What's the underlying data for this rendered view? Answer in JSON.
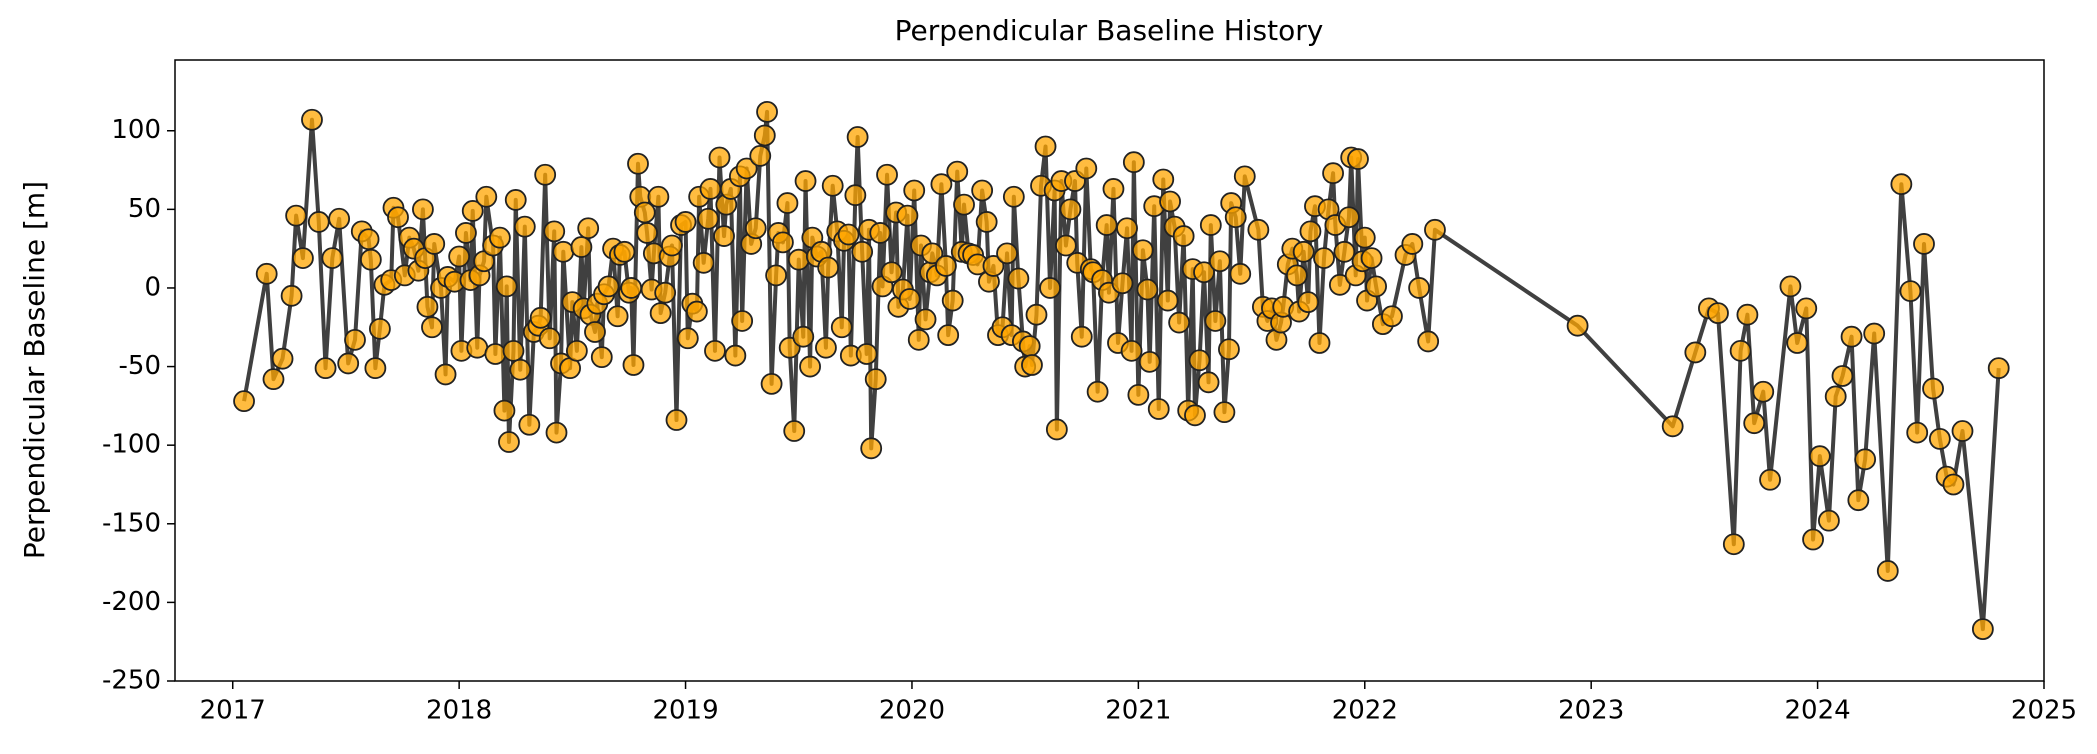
{
  "chart_data": {
    "type": "line",
    "title": "Perpendicular Baseline History",
    "ylabel": "Perpendicular Baseline [m]",
    "color": "#ffa500",
    "line_color": "#404040",
    "xlim": [
      2016.745,
      2025
    ],
    "xticks": [
      2017,
      2018,
      2019,
      2020,
      2021,
      2022,
      2023,
      2024,
      2025
    ],
    "ylim": [
      -250,
      145
    ],
    "yticks": [
      -250,
      -200,
      -150,
      -100,
      -50,
      0,
      50,
      100
    ],
    "x": [
      2017.05,
      2017.15,
      2017.18,
      2017.22,
      2017.26,
      2017.28,
      2017.31,
      2017.35,
      2017.38,
      2017.41,
      2017.44,
      2017.47,
      2017.51,
      2017.54,
      2017.57,
      2017.6,
      2017.61,
      2017.63,
      2017.65,
      2017.67,
      2017.7,
      2017.71,
      2017.73,
      2017.76,
      2017.78,
      2017.8,
      2017.82,
      2017.84,
      2017.85,
      2017.86,
      2017.88,
      2017.89,
      2017.92,
      2017.94,
      2017.95,
      2017.98,
      2018.0,
      2018.01,
      2018.03,
      2018.05,
      2018.06,
      2018.08,
      2018.09,
      2018.11,
      2018.12,
      2018.15,
      2018.16,
      2018.18,
      2018.2,
      2018.21,
      2018.22,
      2018.24,
      2018.25,
      2018.27,
      2018.29,
      2018.31,
      2018.33,
      2018.35,
      2018.36,
      2018.38,
      2018.4,
      2018.42,
      2018.43,
      2018.45,
      2018.46,
      2018.49,
      2018.5,
      2018.52,
      2018.54,
      2018.55,
      2018.57,
      2018.58,
      2018.6,
      2018.61,
      2018.63,
      2018.64,
      2018.66,
      2018.68,
      2018.7,
      2018.71,
      2018.73,
      2018.75,
      2018.76,
      2018.77,
      2018.79,
      2018.8,
      2018.82,
      2018.83,
      2018.85,
      2018.86,
      2018.88,
      2018.89,
      2018.91,
      2018.93,
      2018.94,
      2018.96,
      2018.98,
      2019.0,
      2019.01,
      2019.03,
      2019.05,
      2019.06,
      2019.08,
      2019.1,
      2019.11,
      2019.13,
      2019.15,
      2019.17,
      2019.18,
      2019.2,
      2019.22,
      2019.24,
      2019.25,
      2019.27,
      2019.29,
      2019.31,
      2019.33,
      2019.35,
      2019.36,
      2019.38,
      2019.4,
      2019.41,
      2019.43,
      2019.45,
      2019.46,
      2019.48,
      2019.5,
      2019.52,
      2019.53,
      2019.55,
      2019.56,
      2019.58,
      2019.6,
      2019.62,
      2019.63,
      2019.65,
      2019.67,
      2019.69,
      2019.7,
      2019.72,
      2019.73,
      2019.75,
      2019.76,
      2019.78,
      2019.8,
      2019.81,
      2019.82,
      2019.84,
      2019.86,
      2019.87,
      2019.89,
      2019.91,
      2019.93,
      2019.94,
      2019.96,
      2019.98,
      2019.99,
      2020.01,
      2020.03,
      2020.04,
      2020.06,
      2020.08,
      2020.09,
      2020.11,
      2020.13,
      2020.15,
      2020.16,
      2020.18,
      2020.2,
      2020.22,
      2020.23,
      2020.25,
      2020.27,
      2020.29,
      2020.31,
      2020.33,
      2020.34,
      2020.36,
      2020.38,
      2020.4,
      2020.42,
      2020.44,
      2020.45,
      2020.47,
      2020.49,
      2020.5,
      2020.52,
      2020.53,
      2020.55,
      2020.57,
      2020.59,
      2020.61,
      2020.63,
      2020.64,
      2020.66,
      2020.68,
      2020.7,
      2020.72,
      2020.73,
      2020.75,
      2020.77,
      2020.79,
      2020.8,
      2020.82,
      2020.84,
      2020.86,
      2020.87,
      2020.89,
      2020.91,
      2020.93,
      2020.95,
      2020.97,
      2020.98,
      2021.0,
      2021.02,
      2021.04,
      2021.05,
      2021.07,
      2021.09,
      2021.11,
      2021.13,
      2021.14,
      2021.16,
      2021.18,
      2021.2,
      2021.22,
      2021.24,
      2021.25,
      2021.27,
      2021.29,
      2021.31,
      2021.32,
      2021.34,
      2021.36,
      2021.38,
      2021.4,
      2021.41,
      2021.43,
      2021.45,
      2021.47,
      2021.53,
      2021.55,
      2021.57,
      2021.59,
      2021.61,
      2021.63,
      2021.64,
      2021.66,
      2021.68,
      2021.7,
      2021.71,
      2021.73,
      2021.75,
      2021.76,
      2021.78,
      2021.8,
      2021.82,
      2021.84,
      2021.86,
      2021.87,
      2021.89,
      2021.91,
      2021.93,
      2021.94,
      2021.96,
      2021.97,
      2021.99,
      2022.0,
      2022.01,
      2022.03,
      2022.05,
      2022.08,
      2022.12,
      2022.18,
      2022.21,
      2022.24,
      2022.28,
      2022.31,
      2022.94,
      2023.36,
      2023.46,
      2023.52,
      2023.56,
      2023.63,
      2023.66,
      2023.69,
      2023.72,
      2023.76,
      2023.79,
      2023.88,
      2023.91,
      2023.95,
      2023.98,
      2024.01,
      2024.05,
      2024.08,
      2024.11,
      2024.15,
      2024.18,
      2024.21,
      2024.25,
      2024.31,
      2024.37,
      2024.41,
      2024.44,
      2024.47,
      2024.51,
      2024.54,
      2024.57,
      2024.6,
      2024.64,
      2024.73,
      2024.8
    ],
    "values": [
      -72,
      9,
      -58,
      -45,
      -5,
      46,
      19,
      107,
      42,
      -51,
      19,
      44,
      -48,
      -33,
      36,
      31,
      18,
      -51,
      -26,
      2,
      5,
      51,
      45,
      8,
      32,
      25,
      11,
      50,
      19,
      -12,
      -25,
      28,
      0,
      -55,
      7,
      4,
      20,
      -40,
      35,
      5,
      49,
      -38,
      8,
      17,
      58,
      27,
      -42,
      32,
      -78,
      1,
      -98,
      -40,
      56,
      -52,
      39,
      -87,
      -28,
      -24,
      -19,
      72,
      -32,
      36,
      -92,
      -48,
      23,
      -51,
      -9,
      -40,
      26,
      -13,
      38,
      -17,
      -28,
      -10,
      -44,
      -4,
      1,
      25,
      -18,
      21,
      23,
      -3,
      0,
      -49,
      79,
      58,
      48,
      35,
      -1,
      22,
      58,
      -16,
      -3,
      20,
      27,
      -84,
      40,
      42,
      -32,
      -10,
      -15,
      58,
      16,
      44,
      63,
      -40,
      83,
      33,
      53,
      63,
      -43,
      71,
      -21,
      76,
      28,
      38,
      84,
      97,
      112,
      -61,
      8,
      35,
      29,
      54,
      -38,
      -91,
      18,
      -31,
      68,
      -50,
      32,
      20,
      23,
      -38,
      13,
      65,
      36,
      -25,
      30,
      34,
      -43,
      59,
      96,
      23,
      -42,
      37,
      -102,
      -58,
      35,
      1,
      72,
      10,
      48,
      -12,
      -1,
      46,
      -7,
      62,
      -33,
      27,
      -20,
      10,
      22,
      8,
      66,
      14,
      -30,
      -8,
      74,
      23,
      53,
      22,
      21,
      15,
      62,
      42,
      4,
      14,
      -30,
      -25,
      22,
      -30,
      58,
      6,
      -34,
      -50,
      -37,
      -49,
      -17,
      65,
      90,
      0,
      62,
      -90,
      68,
      27,
      50,
      68,
      16,
      -31,
      76,
      12,
      10,
      -66,
      5,
      40,
      -3,
      63,
      -35,
      3,
      38,
      -40,
      80,
      -68,
      24,
      -1,
      -47,
      52,
      -77,
      69,
      -8,
      55,
      39,
      -22,
      33,
      -78,
      12,
      -81,
      -46,
      10,
      -60,
      40,
      -21,
      17,
      -79,
      -39,
      54,
      45,
      9,
      71,
      37,
      -12,
      -21,
      -13,
      -33,
      -22,
      -12,
      15,
      25,
      8,
      -15,
      23,
      -9,
      36,
      52,
      -35,
      19,
      50,
      73,
      40,
      2,
      23,
      45,
      83,
      8,
      82,
      17,
      32,
      -8,
      19,
      1,
      -23,
      -18,
      21,
      28,
      0,
      -34,
      37,
      -24,
      -88,
      -41,
      -13,
      -16,
      -163,
      -40,
      -17,
      -86,
      -66,
      -122,
      1,
      -35,
      -13,
      -160,
      -107,
      -148,
      -69,
      -56,
      -31,
      -135,
      -109,
      -29,
      -180,
      66,
      -2,
      -92,
      28,
      -64,
      -96,
      -120,
      -125,
      -91,
      -217,
      -51
    ]
  }
}
